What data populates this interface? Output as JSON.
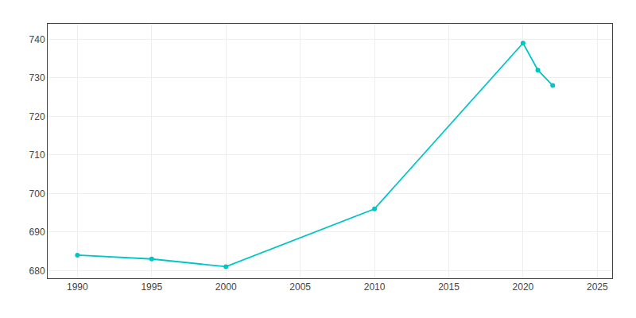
{
  "chart_data": {
    "type": "line",
    "x": [
      1990,
      1995,
      2000,
      2010,
      2020,
      2021,
      2022
    ],
    "values": [
      684,
      683,
      681,
      696,
      739,
      732,
      728
    ],
    "color": "#00C5C5",
    "marker": "circle",
    "xlim": [
      1988,
      2026
    ],
    "xticks": [
      1990,
      1995,
      2000,
      2005,
      2010,
      2015,
      2020,
      2025
    ],
    "ylim": [
      678,
      744
    ],
    "yticks": [
      680,
      690,
      700,
      710,
      720,
      730,
      740
    ],
    "grid": true
  }
}
